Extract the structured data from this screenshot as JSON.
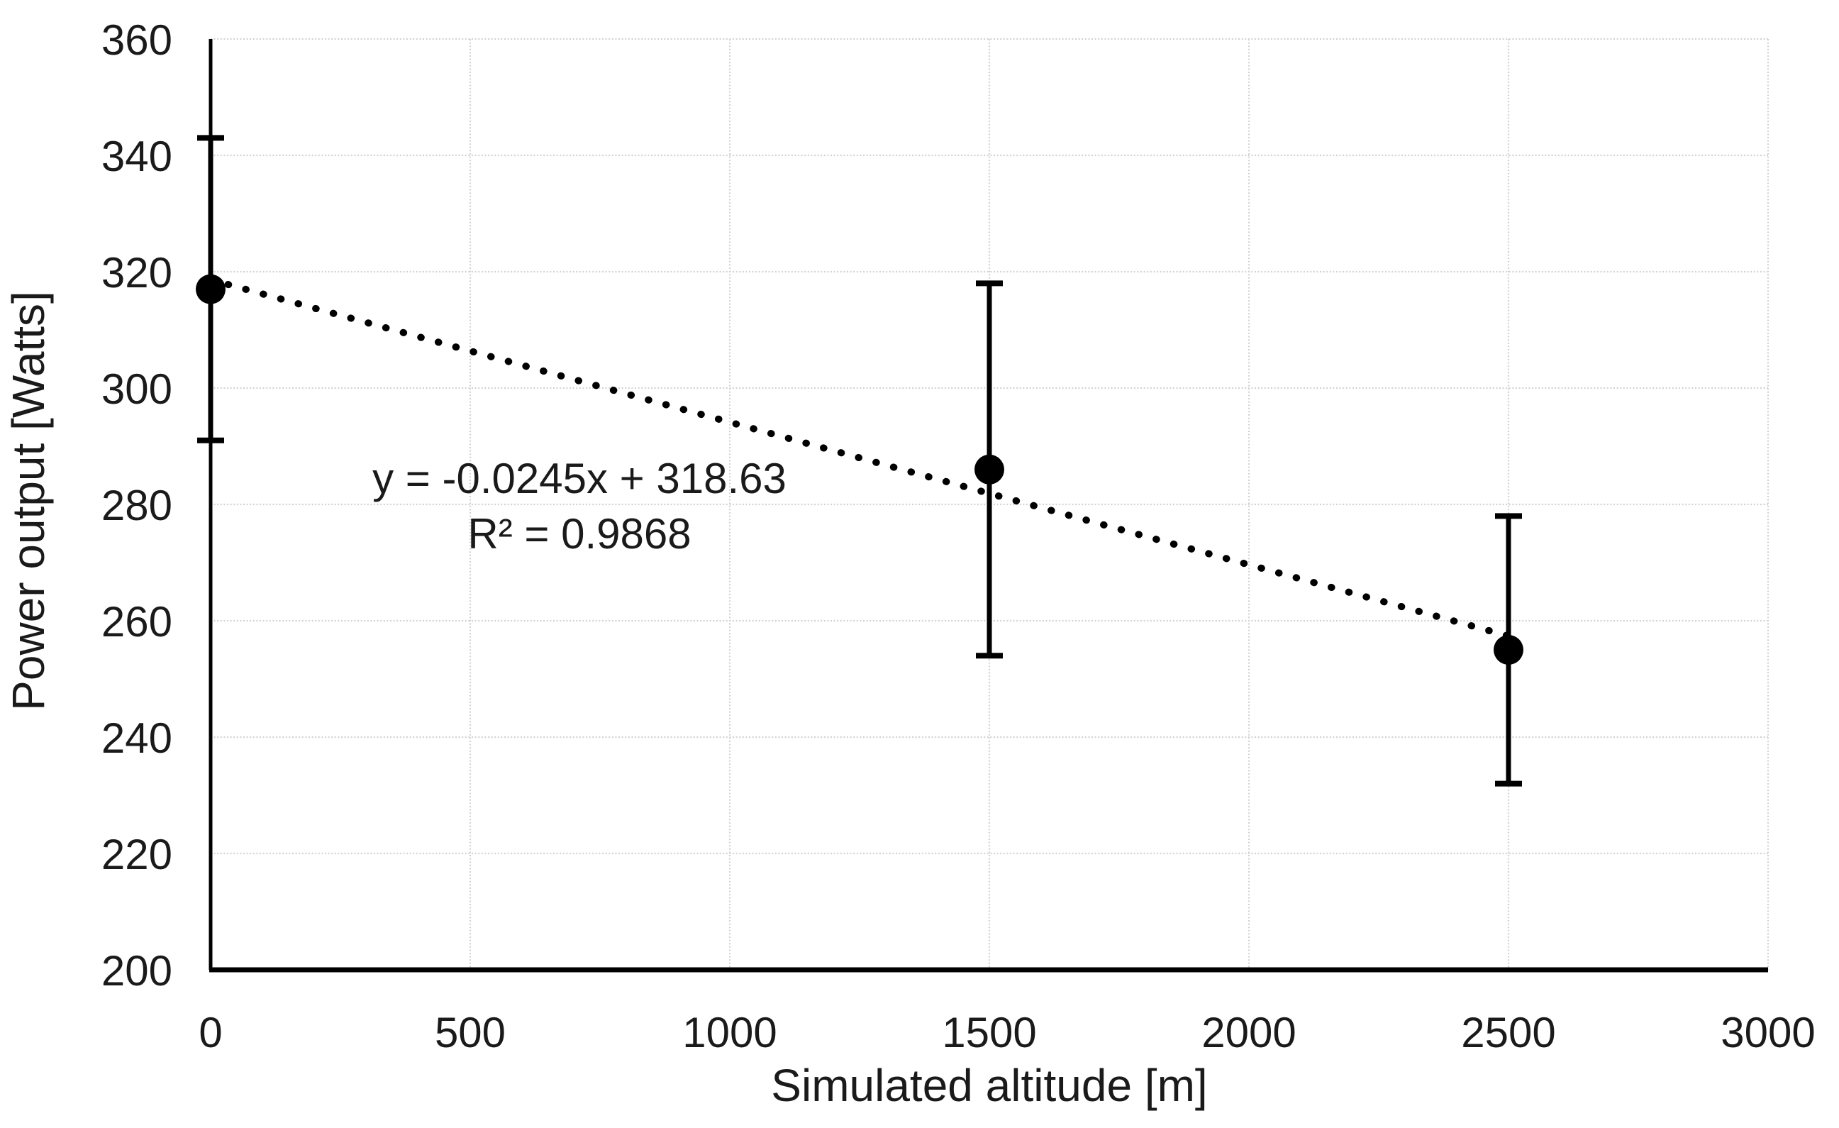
{
  "chart_data": {
    "type": "scatter",
    "title": "",
    "xlabel": "Simulated altitude [m]",
    "ylabel": "Power output [Watts]",
    "xlim": [
      0,
      3000
    ],
    "ylim": [
      200,
      360
    ],
    "x_ticks": [
      0,
      500,
      1000,
      1500,
      2000,
      2500,
      3000
    ],
    "y_ticks": [
      200,
      220,
      240,
      260,
      280,
      300,
      320,
      340,
      360
    ],
    "grid": true,
    "legend": "none",
    "background_color": "#ffffff",
    "gridline_color": "#d2d2d2",
    "axis_color": "#000000",
    "text_color": "#1a1a1a",
    "series": [
      {
        "name": "power-output-vs-altitude",
        "marker": "filled-circle",
        "color": "#000000",
        "x": [
          0,
          1500,
          2500
        ],
        "y": [
          317,
          286,
          255
        ],
        "y_error": [
          26,
          32,
          23
        ]
      }
    ],
    "trendline": {
      "slope": -0.0245,
      "intercept": 318.63,
      "x_start": 0,
      "x_end": 2500,
      "style": "dotted",
      "color": "#000000",
      "equation_label": "y = -0.0245x + 318.63",
      "r_squared_label": "R² = 0.9868"
    }
  }
}
